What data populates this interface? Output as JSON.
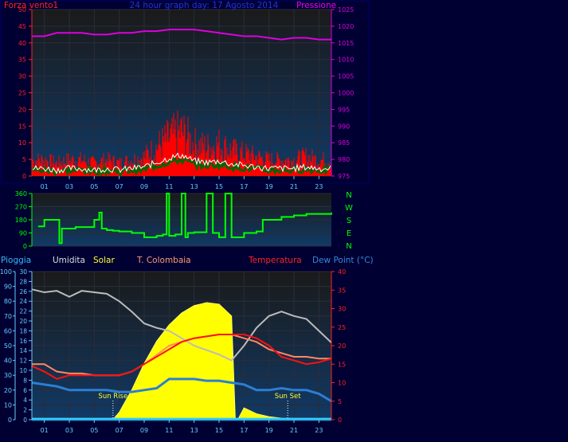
{
  "header": {
    "left_label": "Forza vento1",
    "title": "24 hour graph day:  17 Agosto 2014",
    "right_label": "Pressione"
  },
  "colors": {
    "background": "#000033",
    "wind": "#ff0000",
    "gust": "#ffffff",
    "avg_wind": "#006600",
    "pressure": "#dd00dd",
    "direction": "#00ff00",
    "humidity": "#bbbbbb",
    "solar": "#ffff00",
    "temperature": "#ff1111",
    "temp_colombaia": "#ff8866",
    "dew_point": "#2a7fd4",
    "rain": "#33ccff",
    "tick_text": "#00ffff",
    "rain_axis": "#66ccff"
  },
  "time_ticks": [
    "01",
    "03",
    "05",
    "07",
    "09",
    "11",
    "13",
    "15",
    "17",
    "19",
    "21",
    "23"
  ],
  "direction_letters": [
    "N",
    "W",
    "S",
    "E",
    "N"
  ],
  "bottom_labels": {
    "rain": "Pioggia",
    "humidity": "Umidita",
    "solar": "Solar",
    "colombaia": "T. Colombaia",
    "temperature": "Temperatura",
    "dewpoint": "Dew Point (°C)",
    "sunrise": "Sun Rise",
    "sunset": "Sun Set"
  },
  "chart_data": [
    {
      "type": "line",
      "x_unit": "hour",
      "xlim": [
        0,
        24
      ],
      "y_left": {
        "label": "Forza vento1",
        "ticks": [
          0,
          5,
          10,
          15,
          20,
          25,
          30,
          35,
          40,
          45,
          50
        ],
        "ylim": [
          0,
          50
        ]
      },
      "y_right": {
        "label": "Pressione",
        "ticks": [
          975,
          980,
          985,
          990,
          995,
          1000,
          1005,
          1010,
          1015,
          1020,
          1025
        ],
        "ylim": [
          975,
          1025
        ]
      },
      "series": [
        {
          "name": "Pressione",
          "axis": "right",
          "x": [
            0,
            1,
            2,
            3,
            4,
            5,
            6,
            7,
            8,
            9,
            10,
            11,
            12,
            13,
            14,
            15,
            16,
            17,
            18,
            19,
            20,
            21,
            22,
            23,
            24
          ],
          "values": [
            1017,
            1017,
            1018,
            1018,
            1018,
            1017.5,
            1017.5,
            1018,
            1018,
            1018.5,
            1018.5,
            1019,
            1019,
            1019,
            1018.5,
            1018,
            1017.5,
            1017,
            1017,
            1016.5,
            1016,
            1016.5,
            1016.5,
            1016,
            1016
          ]
        },
        {
          "name": "Forza vento1",
          "axis": "left",
          "x": [
            0,
            1,
            2,
            3,
            4,
            5,
            6,
            7,
            8,
            9,
            10,
            11,
            12,
            13,
            14,
            15,
            16,
            17,
            18,
            19,
            20,
            21,
            22,
            23,
            24
          ],
          "values": [
            5,
            5,
            4,
            5,
            5,
            4,
            5,
            4,
            5,
            6,
            9,
            12,
            14,
            10,
            9,
            10,
            8,
            7,
            6,
            5,
            5,
            5,
            6,
            5,
            5
          ]
        }
      ]
    },
    {
      "type": "line",
      "x_unit": "hour",
      "xlim": [
        0,
        24
      ],
      "y_left": {
        "ticks": [
          0,
          90,
          180,
          270,
          360
        ],
        "ylim": [
          0,
          360
        ]
      },
      "series": [
        {
          "name": "Direzione",
          "x": [
            0.5,
            1,
            2,
            2.2,
            2.4,
            3,
            3.5,
            4,
            5,
            5.4,
            5.6,
            6,
            6.5,
            7,
            8,
            9,
            10,
            10.5,
            10.8,
            11,
            11.5,
            12,
            12.3,
            12.5,
            13,
            14,
            14.5,
            15,
            15.5,
            16,
            17,
            18,
            18.5,
            19,
            20,
            21,
            22,
            23,
            24
          ],
          "values": [
            135,
            180,
            180,
            20,
            120,
            120,
            130,
            130,
            180,
            230,
            120,
            110,
            105,
            100,
            90,
            60,
            70,
            80,
            360,
            70,
            80,
            360,
            60,
            90,
            95,
            360,
            90,
            60,
            360,
            60,
            90,
            100,
            180,
            180,
            200,
            210,
            220,
            220,
            230
          ]
        }
      ]
    },
    {
      "type": "line",
      "x_unit": "hour",
      "xlim": [
        0,
        24
      ],
      "y_left_outer": {
        "label": "Pioggia",
        "ticks": [
          0,
          10,
          20,
          30,
          40,
          50,
          60,
          70,
          80,
          90,
          100
        ],
        "ylim": [
          0,
          100
        ]
      },
      "y_left_inner": {
        "ticks": [
          0,
          2,
          4,
          6,
          8,
          10,
          12,
          14,
          16,
          18,
          20,
          22,
          24,
          26,
          28,
          30
        ],
        "ylim": [
          0,
          30
        ]
      },
      "y_right": {
        "label": "Temperatura",
        "ticks": [
          0,
          5,
          10,
          15,
          20,
          25,
          30,
          35,
          40
        ],
        "ylim": [
          0,
          40
        ]
      },
      "annotations": [
        {
          "label": "Sun Rise",
          "x": 6.5
        },
        {
          "label": "Sun Set",
          "x": 20.5
        }
      ],
      "series": [
        {
          "name": "Umidita",
          "axis": "left_outer",
          "x": [
            0,
            1,
            2,
            3,
            4,
            5,
            6,
            7,
            8,
            9,
            10,
            11,
            12,
            13,
            14,
            15,
            16,
            17,
            18,
            19,
            20,
            21,
            22,
            23,
            24
          ],
          "values": [
            88,
            86,
            87,
            83,
            87,
            86,
            85,
            80,
            73,
            65,
            62,
            60,
            55,
            50,
            47,
            44,
            40,
            50,
            62,
            70,
            73,
            70,
            68,
            60,
            52
          ]
        },
        {
          "name": "Solar",
          "axis": "left_outer",
          "x": [
            6.5,
            7,
            8,
            9,
            10,
            11,
            12,
            13,
            14,
            15,
            16,
            16.3,
            16.5,
            17,
            18,
            19,
            20,
            20.5
          ],
          "values": [
            0,
            5,
            20,
            38,
            53,
            64,
            72,
            77,
            79,
            78,
            70,
            0,
            0,
            8,
            4,
            2,
            1,
            0
          ]
        },
        {
          "name": "T. Colombaia",
          "axis": "right",
          "x": [
            0,
            1,
            2,
            3,
            4,
            5,
            6,
            7,
            8,
            9,
            10,
            11,
            12,
            13,
            14,
            15,
            16,
            17,
            18,
            19,
            20,
            21,
            22,
            23,
            24
          ],
          "values": [
            15,
            15,
            13,
            12.5,
            12.5,
            12,
            12,
            12,
            13,
            15,
            17.5,
            20,
            21,
            22,
            22.5,
            23,
            23,
            22,
            21,
            19,
            18,
            17,
            17,
            16.5,
            16.5
          ]
        },
        {
          "name": "Temperatura",
          "axis": "right",
          "x": [
            0,
            1,
            2,
            3,
            4,
            5,
            6,
            7,
            8,
            9,
            10,
            11,
            12,
            13,
            14,
            15,
            16,
            17,
            18,
            19,
            20,
            21,
            22,
            23,
            24
          ],
          "values": [
            14.5,
            13,
            11,
            12,
            12,
            12,
            12,
            12,
            13,
            15,
            17,
            19,
            21,
            22,
            22.5,
            23,
            23,
            23,
            22,
            20,
            17,
            16,
            15,
            15.5,
            16.5
          ]
        },
        {
          "name": "Dew Point",
          "axis": "right",
          "x": [
            0,
            1,
            2,
            3,
            4,
            5,
            6,
            7,
            8,
            9,
            10,
            11,
            12,
            13,
            14,
            15,
            16,
            17,
            18,
            19,
            20,
            21,
            22,
            23,
            24
          ],
          "values": [
            10,
            9.5,
            9,
            8,
            8,
            8,
            8,
            7.5,
            7.5,
            8,
            8.5,
            11,
            11,
            11,
            10.5,
            10.5,
            10,
            9.5,
            8,
            8,
            8.5,
            8,
            8,
            7,
            5
          ]
        },
        {
          "name": "Pioggia",
          "axis": "left_outer",
          "x": [
            0,
            24
          ],
          "values": [
            0.5,
            0.5
          ]
        }
      ]
    }
  ]
}
